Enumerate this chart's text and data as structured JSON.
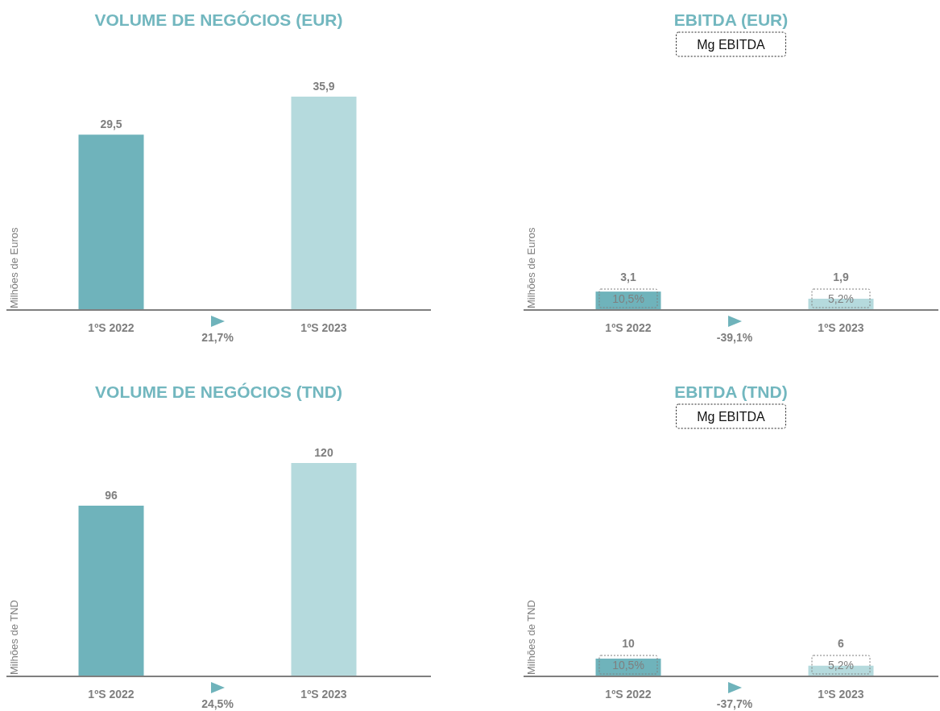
{
  "chart_data": [
    {
      "type": "bar",
      "title": "VOLUME DE NEGÓCIOS (EUR)",
      "ylabel": "Milhões de Euros",
      "categories": [
        "1ºS 2022",
        "1ºS 2023"
      ],
      "values": [
        29.5,
        35.9
      ],
      "colors": [
        "#6fb3bb",
        "#b5dadd"
      ],
      "value_labels": [
        "29,5",
        "35,9"
      ],
      "tick_labels": "x",
      "annotations": [
        "21,7%"
      ]
    },
    {
      "type": "bar",
      "title": "EBITDA (EUR)",
      "ylabel": "Milhões de Euros",
      "categories": [
        "1ºS 2022",
        "1ºS 2023"
      ],
      "values": [
        3.1,
        1.9
      ],
      "colors": [
        "#6fb3bb",
        "#b5dadd"
      ],
      "value_labels": [
        "3,1",
        "1,9"
      ],
      "tick_labels": "x",
      "annotations": [
        "Mg EBITDA",
        "10,5%",
        "5,2%",
        "-39,1%"
      ]
    },
    {
      "type": "bar",
      "title": "VOLUME DE NEGÓCIOS (TND)",
      "ylabel": "Milhões de TND",
      "categories": [
        "1ºS 2022",
        "1ºS 2023"
      ],
      "values": [
        96,
        120
      ],
      "colors": [
        "#6fb3bb",
        "#b5dadd"
      ],
      "value_labels": [
        "96",
        "120"
      ],
      "tick_labels": "x",
      "annotations": [
        "24,5%"
      ]
    },
    {
      "type": "bar",
      "title": "EBITDA (TND)",
      "ylabel": "Milhões de TND",
      "categories": [
        "1ºS 2022",
        "1ºS 2023"
      ],
      "values": [
        10,
        6
      ],
      "colors": [
        "#6fb3bb",
        "#b5dadd"
      ],
      "value_labels": [
        "10",
        "6"
      ],
      "tick_labels": "x",
      "annotations": [
        "Mg EBITDA",
        "10,5%",
        "5,2%",
        "-37,7%"
      ]
    }
  ]
}
